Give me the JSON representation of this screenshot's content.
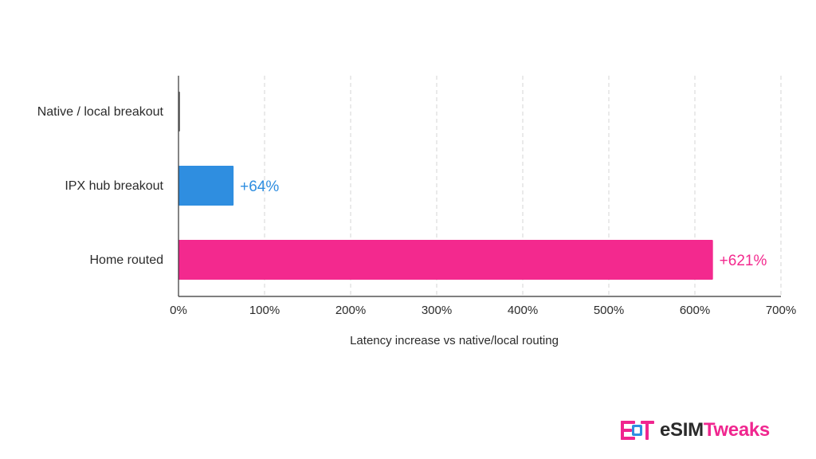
{
  "chart_data": {
    "type": "bar",
    "orientation": "horizontal",
    "categories": [
      "Native / local breakout",
      "IPX hub breakout",
      "Home routed"
    ],
    "values": [
      0,
      64,
      621
    ],
    "data_labels": [
      "",
      "+64%",
      "+621%"
    ],
    "colors": [
      "#777777",
      "#2f8ee0",
      "#f3298e"
    ],
    "xlabel": "Latency increase vs native/local routing",
    "ylabel": "",
    "xlim": [
      0,
      700
    ],
    "ticks": [
      0,
      100,
      200,
      300,
      400,
      500,
      600,
      700
    ],
    "tick_labels": [
      "0%",
      "100%",
      "200%",
      "300%",
      "400%",
      "500%",
      "600%",
      "700%"
    ],
    "grid": "vertical-dashed",
    "legend": "none"
  },
  "brand": {
    "logo_text_prefix": "eSIM",
    "logo_text_suffix": "Tweaks",
    "dark_color": "#2a2a2a",
    "accent_color": "#f0268f",
    "icon_accent": "#2f8ee0"
  }
}
